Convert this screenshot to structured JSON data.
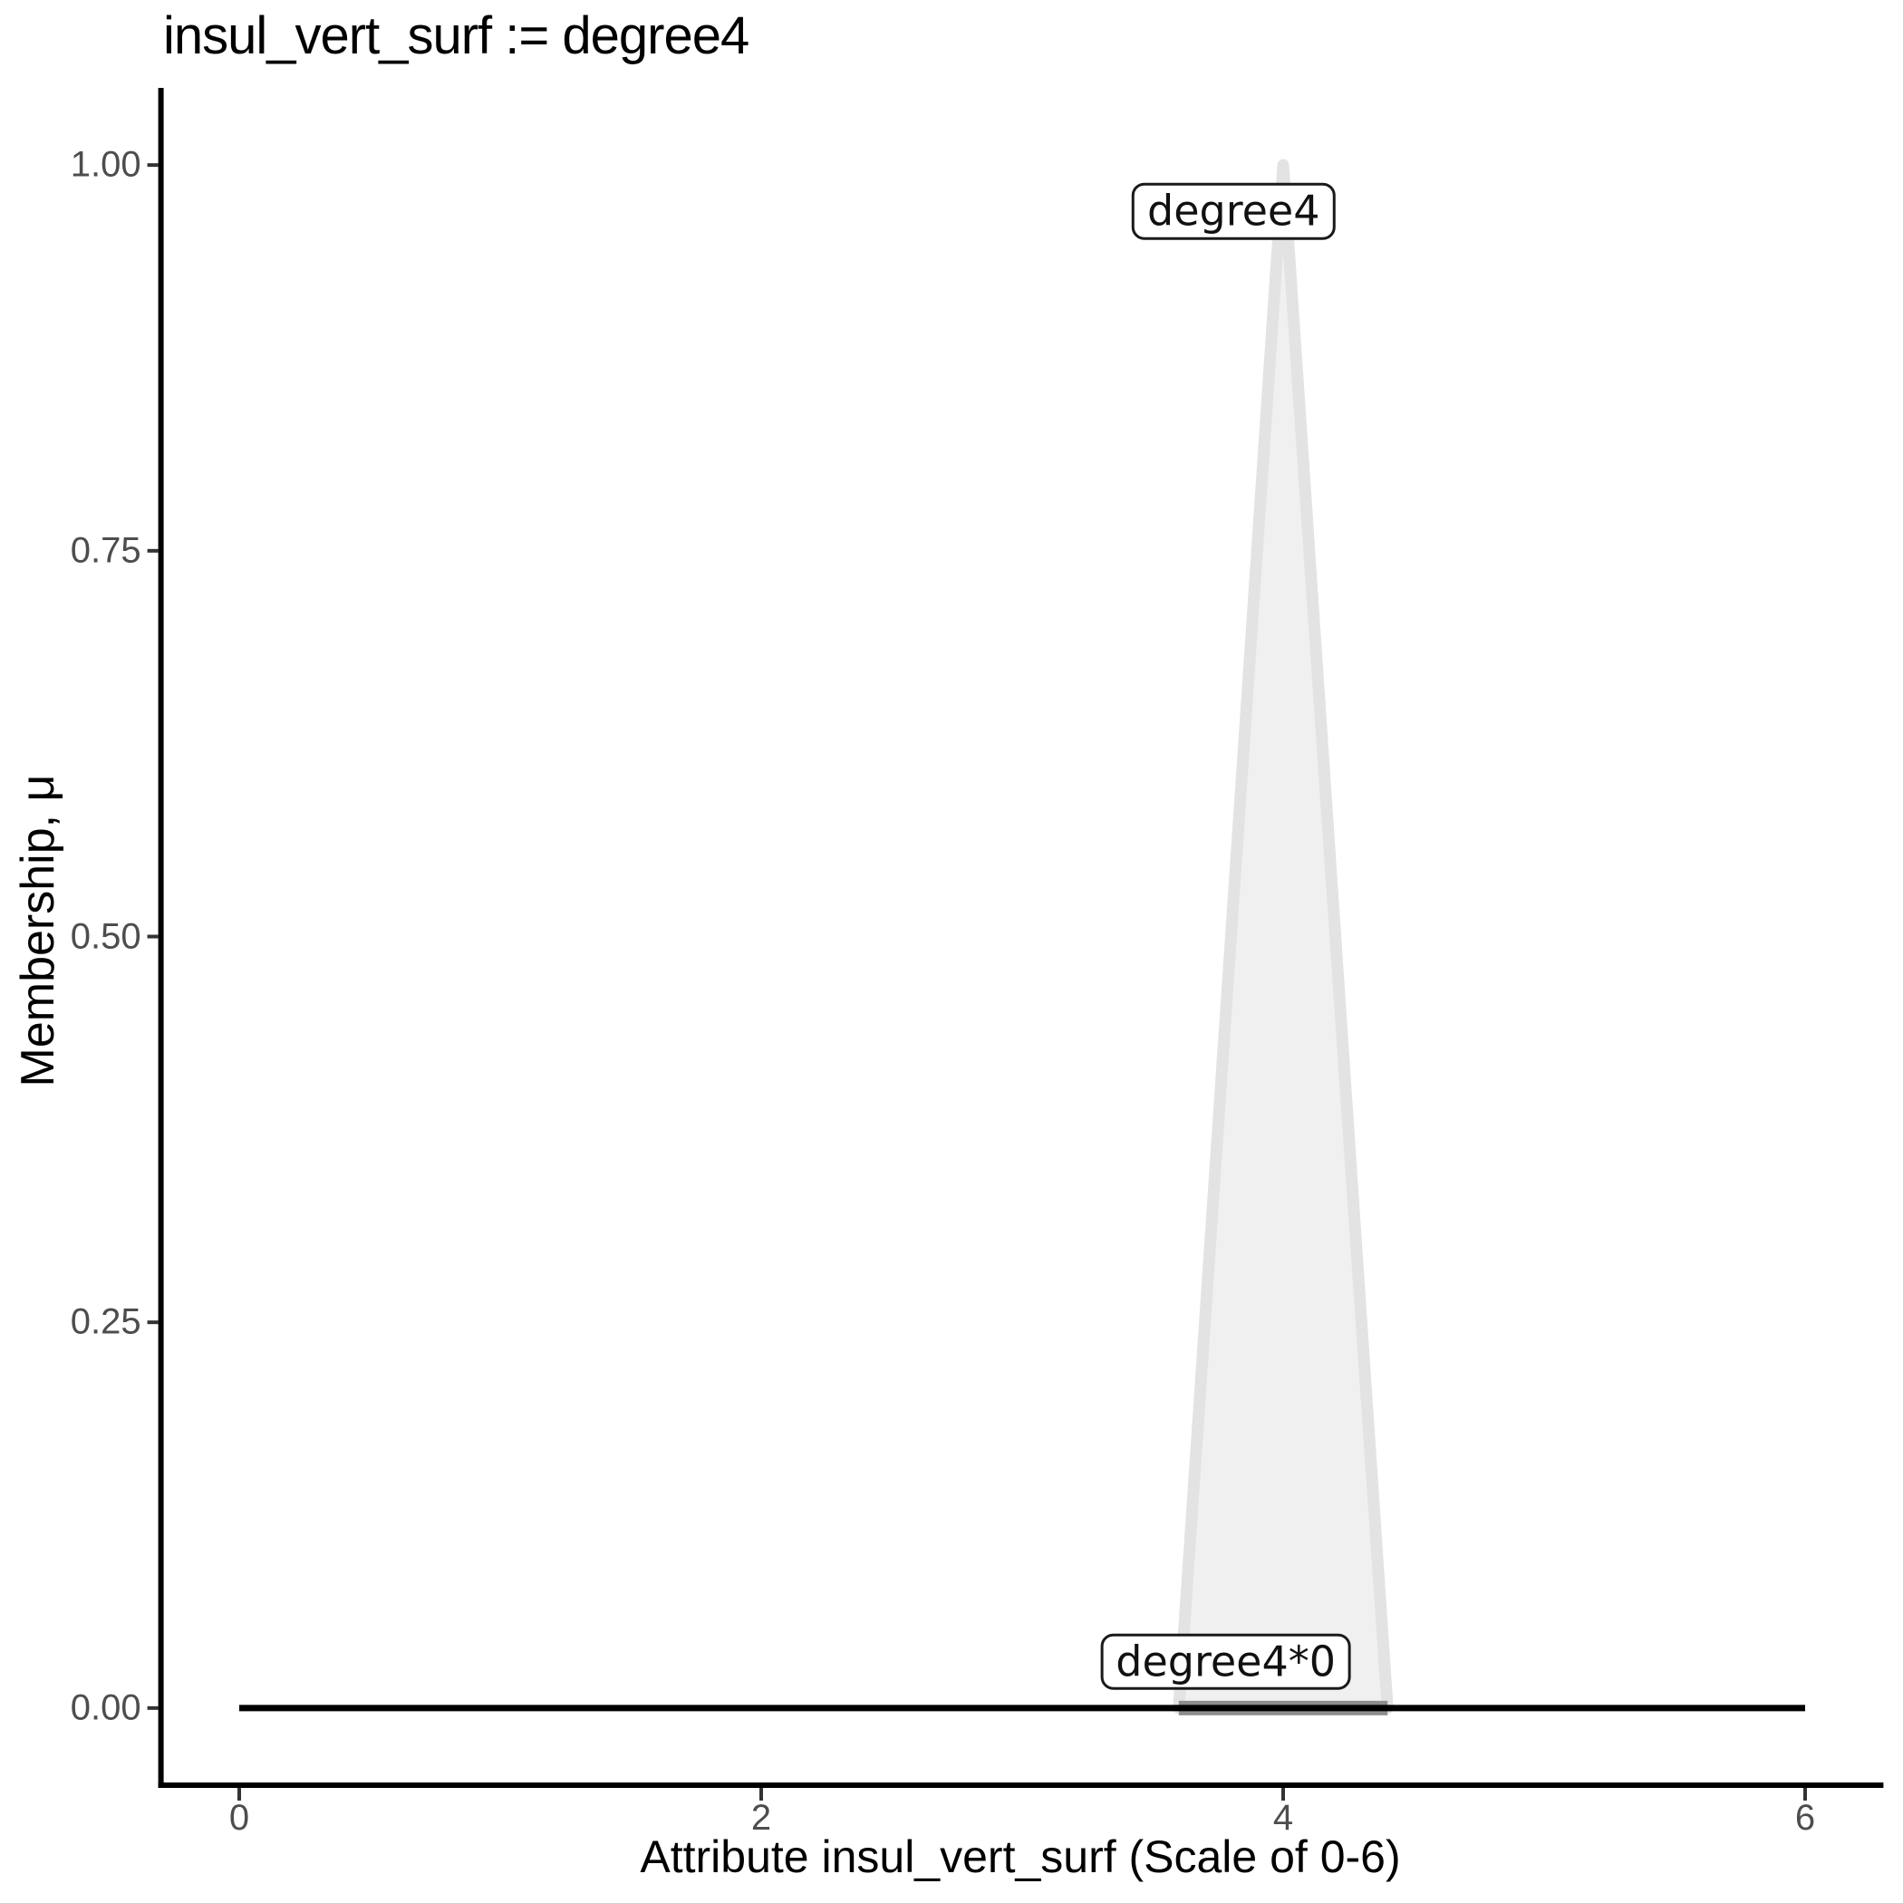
{
  "title": {
    "text": "insul_vert_surf := degree4"
  },
  "y_axis": {
    "title": "Membership, μ",
    "tick_labels": [
      "0.00",
      "0.25",
      "0.50",
      "0.75",
      "1.00"
    ],
    "tick_values": [
      0,
      0.25,
      0.5,
      0.75,
      1.0
    ]
  },
  "x_axis": {
    "title": "Attribute insul_vert_surf (Scale of 0-6)",
    "tick_labels": [
      "0",
      "2",
      "4",
      "6"
    ],
    "tick_values": [
      0,
      2,
      4,
      6
    ]
  },
  "chart_data": {
    "type": "area",
    "title": "insul_vert_surf := degree4",
    "xlabel": "Attribute insul_vert_surf (Scale of 0-6)",
    "ylabel": "Membership, μ",
    "xlim": [
      0,
      6
    ],
    "ylim": [
      0,
      1
    ],
    "x_ticks": [
      "0",
      "2",
      "4",
      "6"
    ],
    "y_ticks": [
      "0.00",
      "0.25",
      "0.50",
      "0.75",
      "1.00"
    ],
    "grid": "off",
    "legend": "none",
    "series": [
      {
        "name": "degree4",
        "kind": "membership-triangle",
        "points": [
          [
            3.6,
            0
          ],
          [
            4.0,
            1.0
          ],
          [
            4.4,
            0
          ]
        ],
        "fill": "#f0f0f0",
        "stroke": "#e3e3e3",
        "stroke_width": 13
      },
      {
        "name": "degree4*0",
        "kind": "segment",
        "points": [
          [
            3.6,
            0
          ],
          [
            4.4,
            0
          ]
        ],
        "stroke": "#8e8e8e",
        "stroke_width": 16
      },
      {
        "name": "zero-baseline",
        "kind": "segment",
        "points": [
          [
            0,
            0
          ],
          [
            6,
            0
          ]
        ],
        "stroke": "#000000",
        "stroke_width": 7
      }
    ],
    "annotations": [
      {
        "text": "degree4",
        "x": 3.81,
        "y": 0.97
      },
      {
        "text": "degree4*0",
        "x": 3.78,
        "y": 0.03
      }
    ]
  },
  "colors": {
    "background": "#ffffff",
    "axis_line": "#000000",
    "tick_mark": "#333333",
    "tick_label": "#4d4d4d",
    "annotation_border": "#1a1a1a",
    "annotation_bg": "#ffffff"
  }
}
